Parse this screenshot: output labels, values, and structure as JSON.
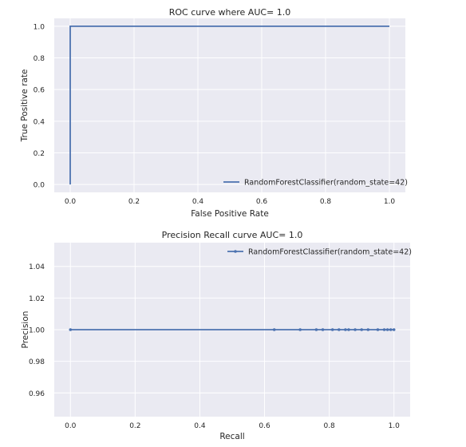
{
  "colors": {
    "series": "#4c72b0",
    "plot_bg": "#eaeaf2"
  },
  "chart_data": [
    {
      "type": "line",
      "title": "ROC curve where AUC= 1.0",
      "xlabel": "False Positive Rate",
      "ylabel": "True Positive rate",
      "xlim": [
        -0.05,
        1.05
      ],
      "ylim": [
        -0.05,
        1.05
      ],
      "xticks": [
        0.0,
        0.2,
        0.4,
        0.6,
        0.8,
        1.0
      ],
      "xtick_labels": [
        "0.0",
        "0.2",
        "0.4",
        "0.6",
        "0.8",
        "1.0"
      ],
      "yticks": [
        0.0,
        0.2,
        0.4,
        0.6,
        0.8,
        1.0
      ],
      "ytick_labels": [
        "0.0",
        "0.2",
        "0.4",
        "0.6",
        "0.8",
        "1.0"
      ],
      "grid": true,
      "legend_position": "lower-right",
      "series": [
        {
          "name": "RandomForestClassifier(random_state=42)",
          "x": [
            0.0,
            0.0,
            1.0
          ],
          "y": [
            0.0,
            1.0,
            1.0
          ],
          "marker": "none"
        }
      ]
    },
    {
      "type": "line",
      "title": "Precision Recall curve AUC= 1.0",
      "xlabel": "Recall",
      "ylabel": "Precision",
      "xlim": [
        -0.05,
        1.05
      ],
      "ylim": [
        0.945,
        1.055
      ],
      "xticks": [
        0.0,
        0.2,
        0.4,
        0.6,
        0.8,
        1.0
      ],
      "xtick_labels": [
        "0.0",
        "0.2",
        "0.4",
        "0.6",
        "0.8",
        "1.0"
      ],
      "yticks": [
        0.96,
        0.98,
        1.0,
        1.02,
        1.04
      ],
      "ytick_labels": [
        "0.96",
        "0.98",
        "1.00",
        "1.02",
        "1.04"
      ],
      "grid": true,
      "legend_position": "top-right",
      "series": [
        {
          "name": "RandomForestClassifier(random_state=42)",
          "x": [
            0.0,
            0.63,
            0.71,
            0.76,
            0.78,
            0.81,
            0.83,
            0.85,
            0.86,
            0.88,
            0.9,
            0.92,
            0.95,
            0.97,
            0.98,
            0.99,
            1.0
          ],
          "y": [
            1.0,
            1.0,
            1.0,
            1.0,
            1.0,
            1.0,
            1.0,
            1.0,
            1.0,
            1.0,
            1.0,
            1.0,
            1.0,
            1.0,
            1.0,
            1.0,
            1.0
          ],
          "marker": "dot"
        }
      ]
    }
  ]
}
